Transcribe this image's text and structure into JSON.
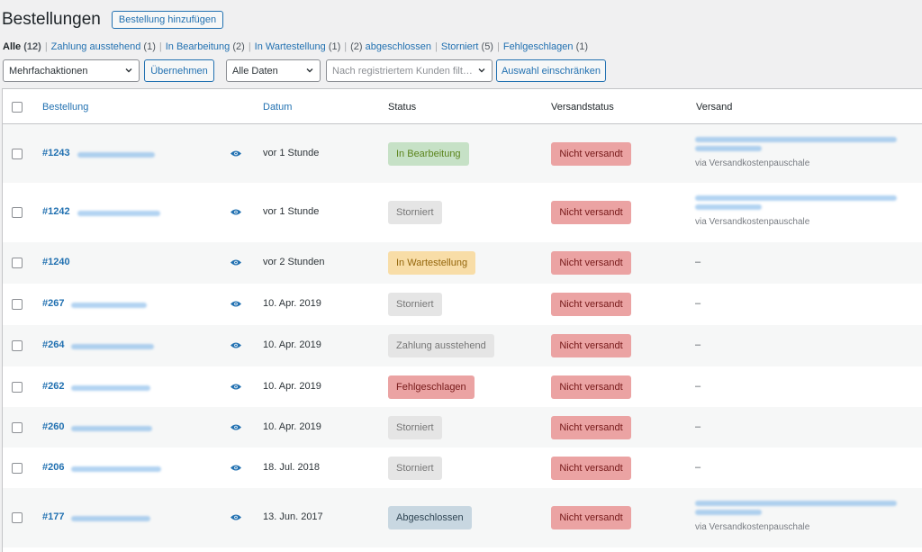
{
  "page": {
    "title": "Bestellungen",
    "add_button": "Bestellung hinzufügen"
  },
  "filters": [
    {
      "label": "Alle",
      "count": "(12)",
      "current": true
    },
    {
      "label": "Zahlung ausstehend",
      "count": "(1)"
    },
    {
      "label": "In Bearbeitung",
      "count": "(2)"
    },
    {
      "label": "In Wartestellung",
      "count": "(1)"
    },
    {
      "label": "abgeschlossen",
      "count": "(2)",
      "count_first": true
    },
    {
      "label": "Storniert",
      "count": "(5)"
    },
    {
      "label": "Fehlgeschlagen",
      "count": "(1)"
    }
  ],
  "tablenav": {
    "bulk_actions": "Mehrfachaktionen",
    "apply_button": "Übernehmen",
    "dates_select": "Alle Daten",
    "customer_placeholder": "Nach registriertem Kunden filt…",
    "filter_button": "Auswahl einschränken"
  },
  "columns": {
    "order": "Bestellung",
    "date": "Datum",
    "status": "Status",
    "shipping_status": "Versandstatus",
    "shipping": "Versand"
  },
  "rows": [
    {
      "order": "#1243",
      "date": "vor 1 Stunde",
      "status": "In Bearbeitung",
      "status_class": "processing",
      "shipping_status": "Nicht versandt",
      "shipping_note": "via Versandkostenpauschale",
      "has_shipping": true
    },
    {
      "order": "#1242",
      "date": "vor 1 Stunde",
      "status": "Storniert",
      "status_class": "cancelled",
      "shipping_status": "Nicht versandt",
      "shipping_note": "via Versandkostenpauschale",
      "has_shipping": true
    },
    {
      "order": "#1240",
      "date": "vor 2 Stunden",
      "status": "In Wartestellung",
      "status_class": "onhold",
      "shipping_status": "Nicht versandt",
      "shipping_note": "–",
      "has_shipping": false
    },
    {
      "order": "#267",
      "date": "10. Apr. 2019",
      "status": "Storniert",
      "status_class": "cancelled",
      "shipping_status": "Nicht versandt",
      "shipping_note": "–",
      "has_shipping": false
    },
    {
      "order": "#264",
      "date": "10. Apr. 2019",
      "status": "Zahlung ausstehend",
      "status_class": "pending",
      "shipping_status": "Nicht versandt",
      "shipping_note": "–",
      "has_shipping": false
    },
    {
      "order": "#262",
      "date": "10. Apr. 2019",
      "status": "Fehlgeschlagen",
      "status_class": "failed",
      "shipping_status": "Nicht versandt",
      "shipping_note": "–",
      "has_shipping": false
    },
    {
      "order": "#260",
      "date": "10. Apr. 2019",
      "status": "Storniert",
      "status_class": "cancelled",
      "shipping_status": "Nicht versandt",
      "shipping_note": "–",
      "has_shipping": false
    },
    {
      "order": "#206",
      "date": "18. Jul. 2018",
      "status": "Storniert",
      "status_class": "cancelled",
      "shipping_status": "Nicht versandt",
      "shipping_note": "–",
      "has_shipping": false
    },
    {
      "order": "#177",
      "date": "13. Jun. 2017",
      "status": "Abgeschlossen",
      "status_class": "completed",
      "shipping_status": "Nicht versandt",
      "shipping_note": "via Versandkostenpauschale",
      "has_shipping": true
    }
  ],
  "icons": {
    "preview": "eye-icon",
    "dropdown": "chevron-down-icon"
  },
  "colors": {
    "link": "#2271b1",
    "not_shipped_bg": "#eba3a3"
  }
}
